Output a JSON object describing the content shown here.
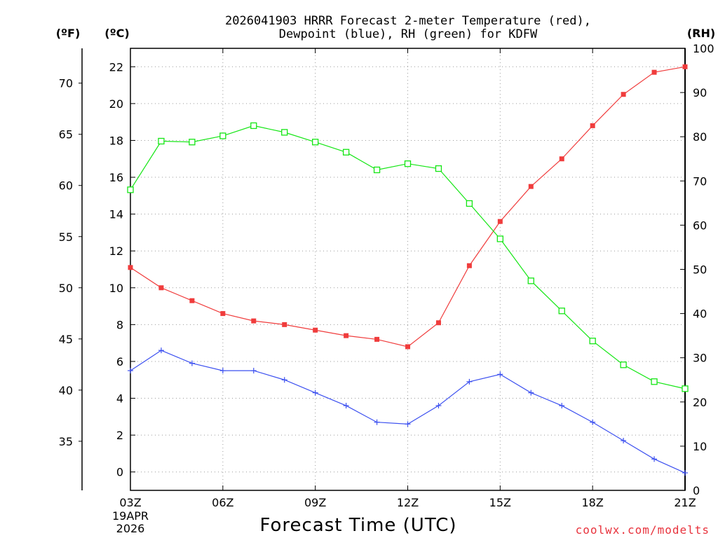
{
  "chart_data": {
    "type": "line",
    "title_line1": "2026041903 HRRR Forecast 2-meter Temperature (red),",
    "title_line2": "Dewpoint (blue), RH (green) for KDFW",
    "xlabel": "Forecast Time (UTC)",
    "date_line1": "19APR",
    "date_line2": "2026",
    "credit": "coolwx.com/modelts",
    "x": [
      3,
      4,
      5,
      6,
      7,
      8,
      9,
      10,
      11,
      12,
      13,
      14,
      15,
      16,
      17,
      18,
      19,
      20,
      21
    ],
    "x_ticks": [
      3,
      6,
      9,
      12,
      15,
      18,
      21
    ],
    "x_tick_labels": [
      "03Z",
      "06Z",
      "09Z",
      "12Z",
      "15Z",
      "18Z",
      "21Z"
    ],
    "xlim": [
      3,
      21
    ],
    "left_axis_c": {
      "label": "(ºC)",
      "ticks": [
        0,
        2,
        4,
        6,
        8,
        10,
        12,
        14,
        16,
        18,
        20,
        22
      ],
      "ylim": [
        -1,
        23
      ]
    },
    "left_axis_f": {
      "label": "(ºF)",
      "ticks": [
        35,
        40,
        45,
        50,
        55,
        60,
        65,
        70
      ]
    },
    "right_axis_rh": {
      "label": "(RH)",
      "ticks": [
        0,
        10,
        20,
        30,
        40,
        50,
        60,
        70,
        80,
        90,
        100
      ],
      "ylim": [
        0,
        100
      ]
    },
    "series": [
      {
        "name": "Temperature",
        "axis": "C",
        "color": "#f03c3c",
        "values": [
          11.1,
          10.0,
          9.3,
          8.6,
          8.2,
          8.0,
          7.7,
          7.4,
          7.2,
          6.8,
          8.1,
          11.2,
          13.6,
          15.5,
          17.0,
          18.8,
          20.5,
          21.7,
          22.0
        ]
      },
      {
        "name": "Dewpoint",
        "axis": "C",
        "color": "#3c50f0",
        "values": [
          5.5,
          6.6,
          5.9,
          5.5,
          5.5,
          5.0,
          4.3,
          3.6,
          2.7,
          2.6,
          3.6,
          4.9,
          5.3,
          4.3,
          3.6,
          2.7,
          1.7,
          0.7,
          -0.05
        ]
      },
      {
        "name": "RH",
        "axis": "RH",
        "color": "#14e614",
        "values": [
          68,
          79,
          78.8,
          80.2,
          82.5,
          81,
          78.8,
          76.5,
          72.5,
          73.9,
          72.8,
          64.9,
          56.9,
          47.4,
          40.6,
          33.8,
          28.4,
          24.6,
          23
        ]
      }
    ]
  }
}
